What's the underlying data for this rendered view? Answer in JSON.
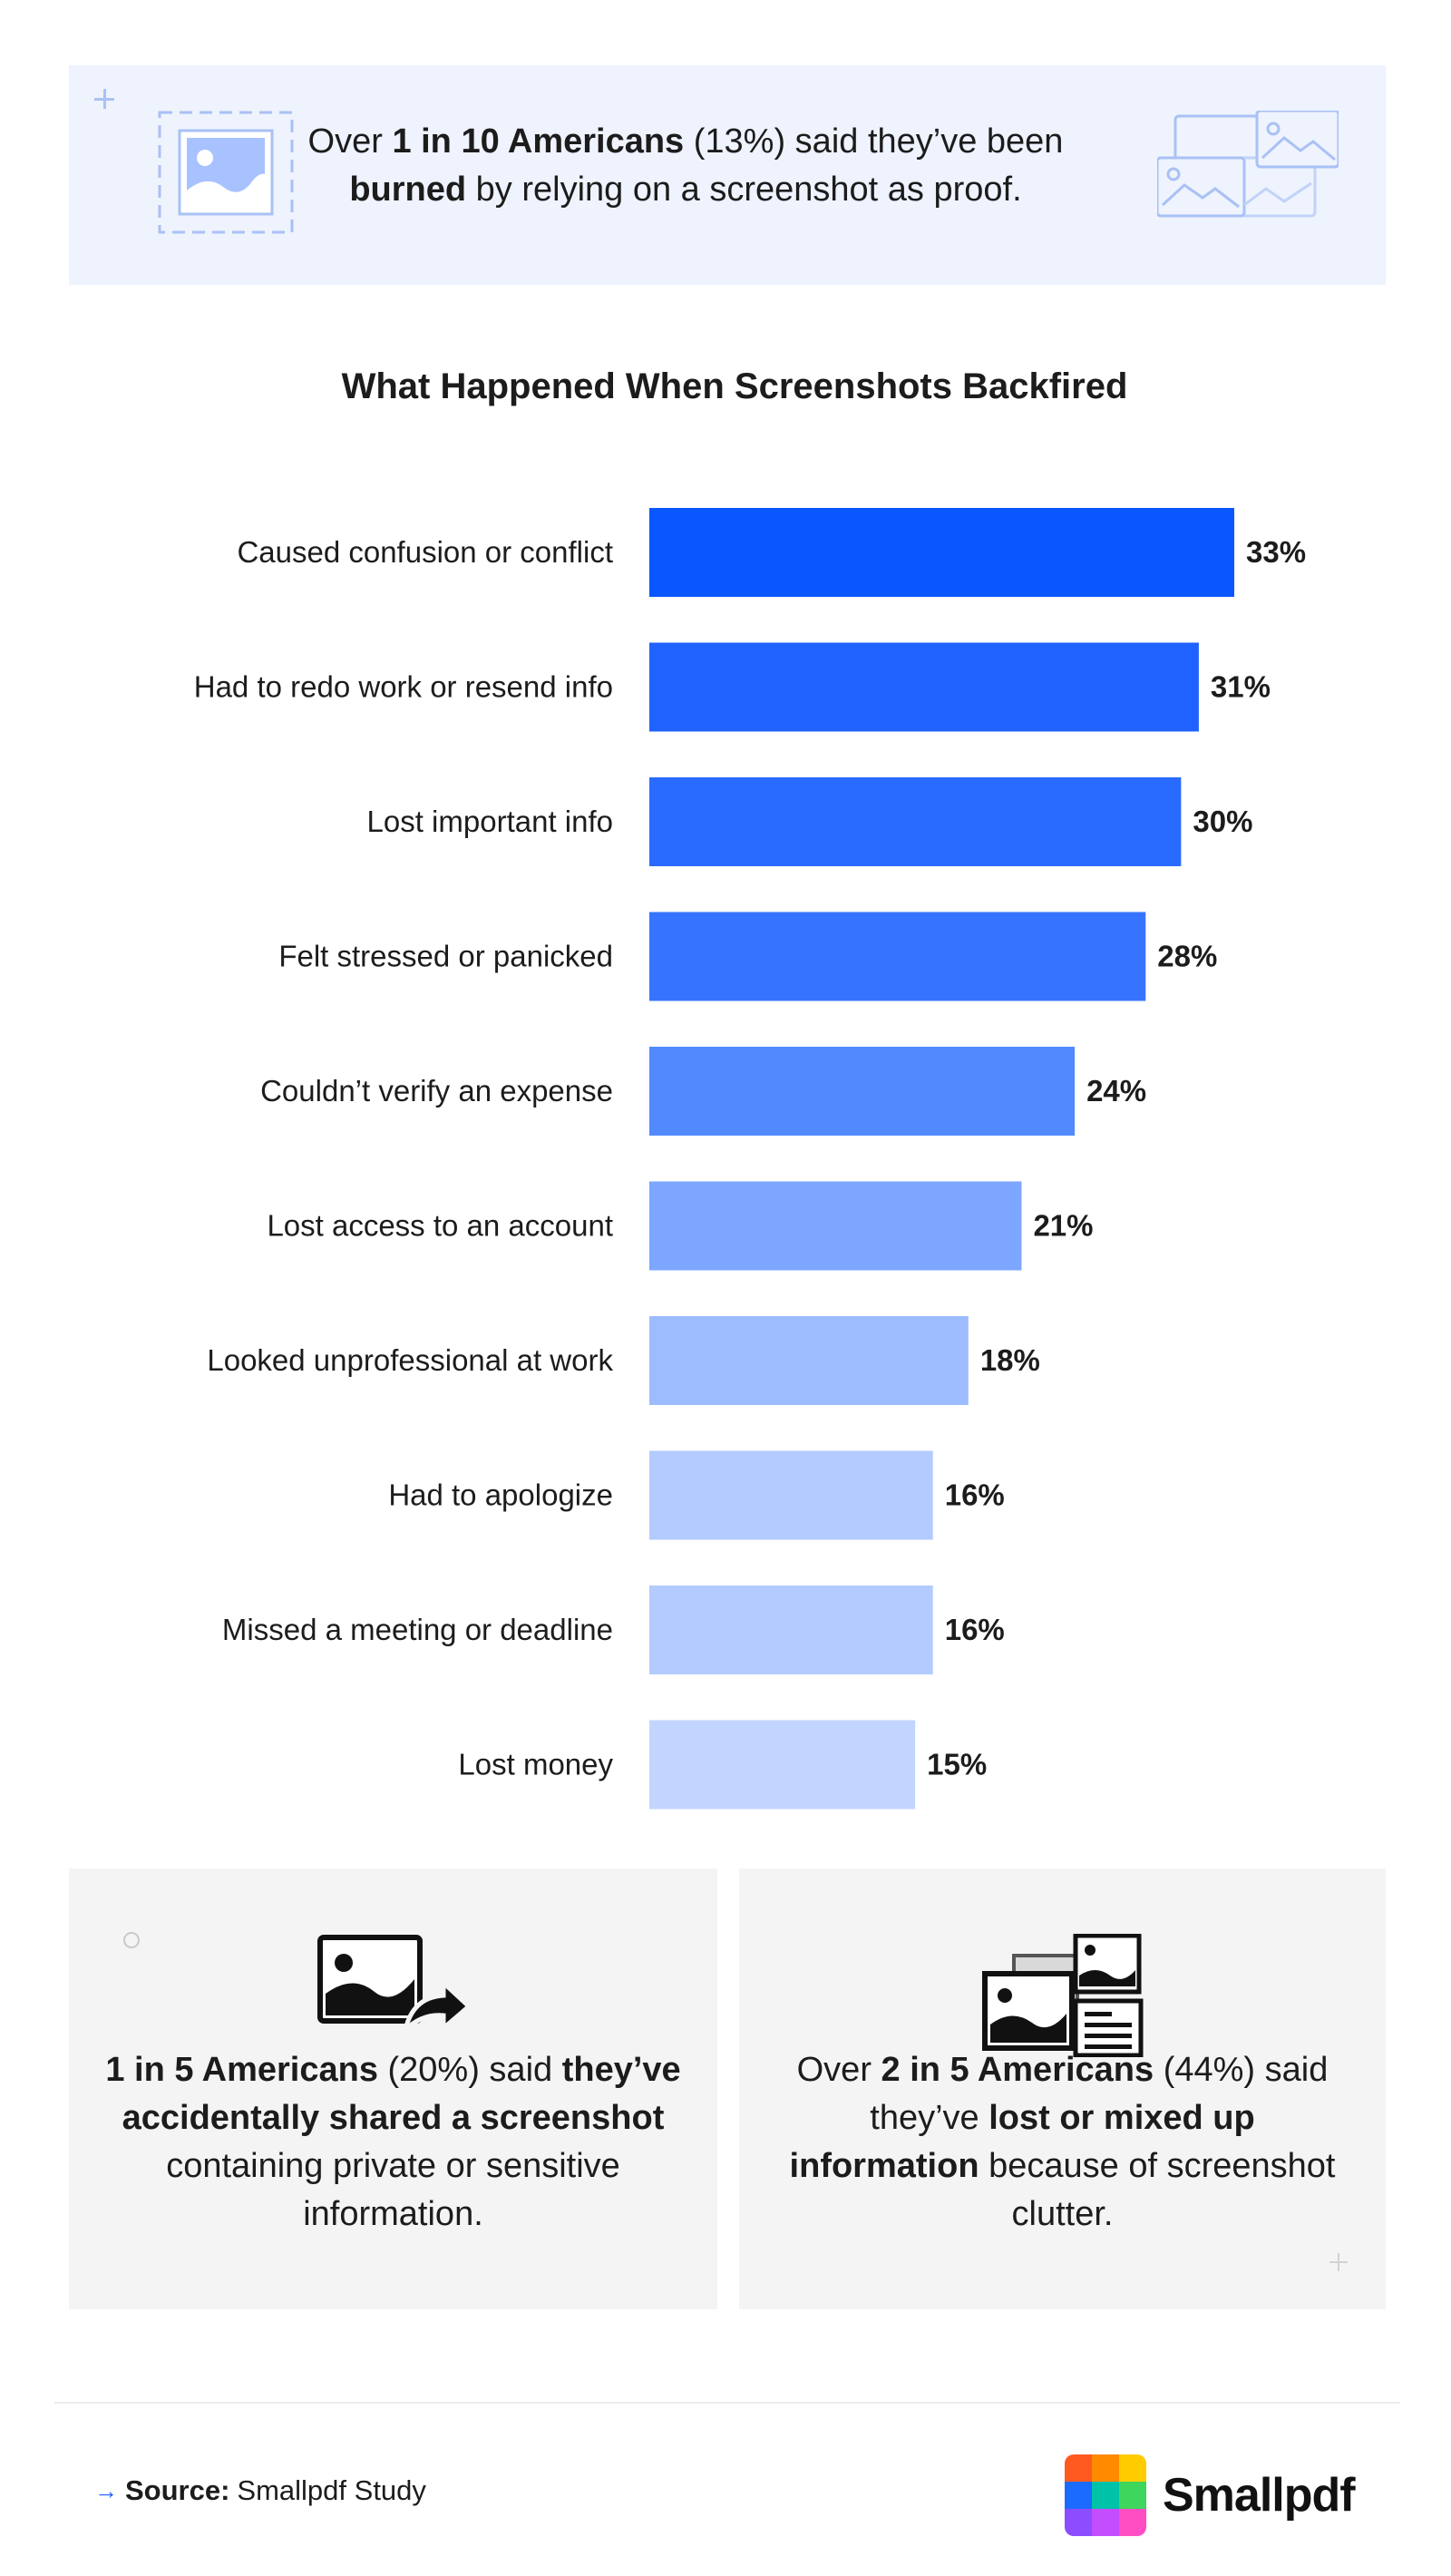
{
  "banner": {
    "pre": "Over ",
    "bold1": "1 in 10 Americans",
    "mid": " (13%) said they’ve been ",
    "bold2": "burned",
    "post": " by relying on a screenshot as proof."
  },
  "chart_data": {
    "type": "bar",
    "orientation": "horizontal",
    "title": "What Happened When Screenshots Backfired",
    "categories": [
      "Caused confusion or conflict",
      "Had to redo work or resend info",
      "Lost important info",
      "Felt stressed or panicked",
      "Couldn’t verify an expense",
      "Lost access to an account",
      "Looked unprofessional at work",
      "Had to apologize",
      "Missed a meeting or deadline",
      "Lost money"
    ],
    "values": [
      33,
      31,
      30,
      28,
      24,
      21,
      18,
      16,
      16,
      15
    ],
    "value_labels": [
      "33%",
      "31%",
      "30%",
      "28%",
      "24%",
      "21%",
      "18%",
      "16%",
      "16%",
      "15%"
    ],
    "bar_colors": [
      "#0b57ff",
      "#1f62ff",
      "#2a6bff",
      "#3674ff",
      "#5289ff",
      "#7ca6ff",
      "#9dbcff",
      "#b3cbff",
      "#b3cbff",
      "#c2d5ff"
    ],
    "xlabel": "",
    "ylabel": "",
    "xlim": [
      0,
      33
    ],
    "grid": false,
    "legend": "none"
  },
  "cards": {
    "left": {
      "icon": "image-share-icon",
      "bold1": "1 in 5 Americans",
      "mid": " (20%) said ",
      "bold2": "they’ve accidentally shared a screenshot",
      "post": " containing private or sensitive information."
    },
    "right": {
      "icon": "image-stack-icon",
      "pre": "Over ",
      "bold1": "2 in 5 Americans",
      "mid": " (44%) said they’ve ",
      "bold2": "lost or mixed up information",
      "post": " because of screenshot clutter."
    }
  },
  "footer": {
    "source_label": "Source:",
    "source_text": "Smallpdf Study",
    "brand": "Smallpdf",
    "logo_colors": [
      "#ff5a1f",
      "#ff8a00",
      "#ffcc00",
      "#1b6bff",
      "#00c2a8",
      "#3ed65c",
      "#8b4dff",
      "#c34dff",
      "#ff4dc4"
    ]
  }
}
